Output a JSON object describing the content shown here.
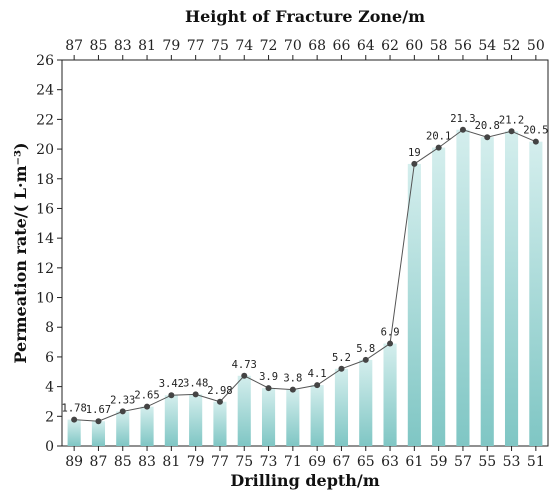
{
  "chart_data": {
    "type": "bar",
    "title": "",
    "xlabel": "Drilling depth/m",
    "x2label": "Height of Fracture Zone/m",
    "ylabel": "Permeation rate/( L·m⁻³)",
    "ylim": [
      0,
      26
    ],
    "yticks": [
      "0",
      "2",
      "4",
      "6",
      "8",
      "10",
      "12",
      "14",
      "16",
      "18",
      "20",
      "22",
      "24",
      "26"
    ],
    "categories": [
      "89",
      "87",
      "85",
      "83",
      "81",
      "79",
      "77",
      "75",
      "73",
      "71",
      "69",
      "67",
      "65",
      "63",
      "61",
      "59",
      "57",
      "55",
      "53",
      "51"
    ],
    "top_categories": [
      "87",
      "85",
      "83",
      "81",
      "79",
      "77",
      "75",
      "74",
      "72",
      "70",
      "68",
      "66",
      "64",
      "62",
      "60",
      "58",
      "56",
      "54",
      "52",
      "50"
    ],
    "values": [
      1.78,
      1.67,
      2.33,
      2.65,
      3.42,
      3.48,
      2.98,
      4.73,
      3.9,
      3.8,
      4.1,
      5.2,
      5.8,
      6.9,
      19,
      20.1,
      21.3,
      20.8,
      21.2,
      20.5
    ],
    "value_labels": [
      "1.78",
      "1.67",
      "2.33",
      "2.65",
      "3.42",
      "3.48",
      "2.98",
      "4.73",
      "3.9",
      "3.8",
      "4.1",
      "5.2",
      "5.8",
      "6.9",
      "19",
      "20.1",
      "21.3",
      "20.8",
      "21.2",
      "20.5"
    ],
    "series": [
      {
        "values": [
          1.78,
          1.67,
          2.33,
          2.65,
          3.42,
          3.48,
          2.98,
          4.73,
          3.9,
          3.8,
          4.1,
          5.2,
          5.8,
          6.9,
          19,
          20.1,
          21.3,
          20.8,
          21.2,
          20.5
        ]
      }
    ],
    "overlay": "line with markers",
    "grid": false,
    "colors": {
      "bar_top": "#d4eeed",
      "bar_bottom": "#7fc6c4",
      "line": "#555555",
      "marker": "#444444",
      "axis": "#222222"
    }
  }
}
